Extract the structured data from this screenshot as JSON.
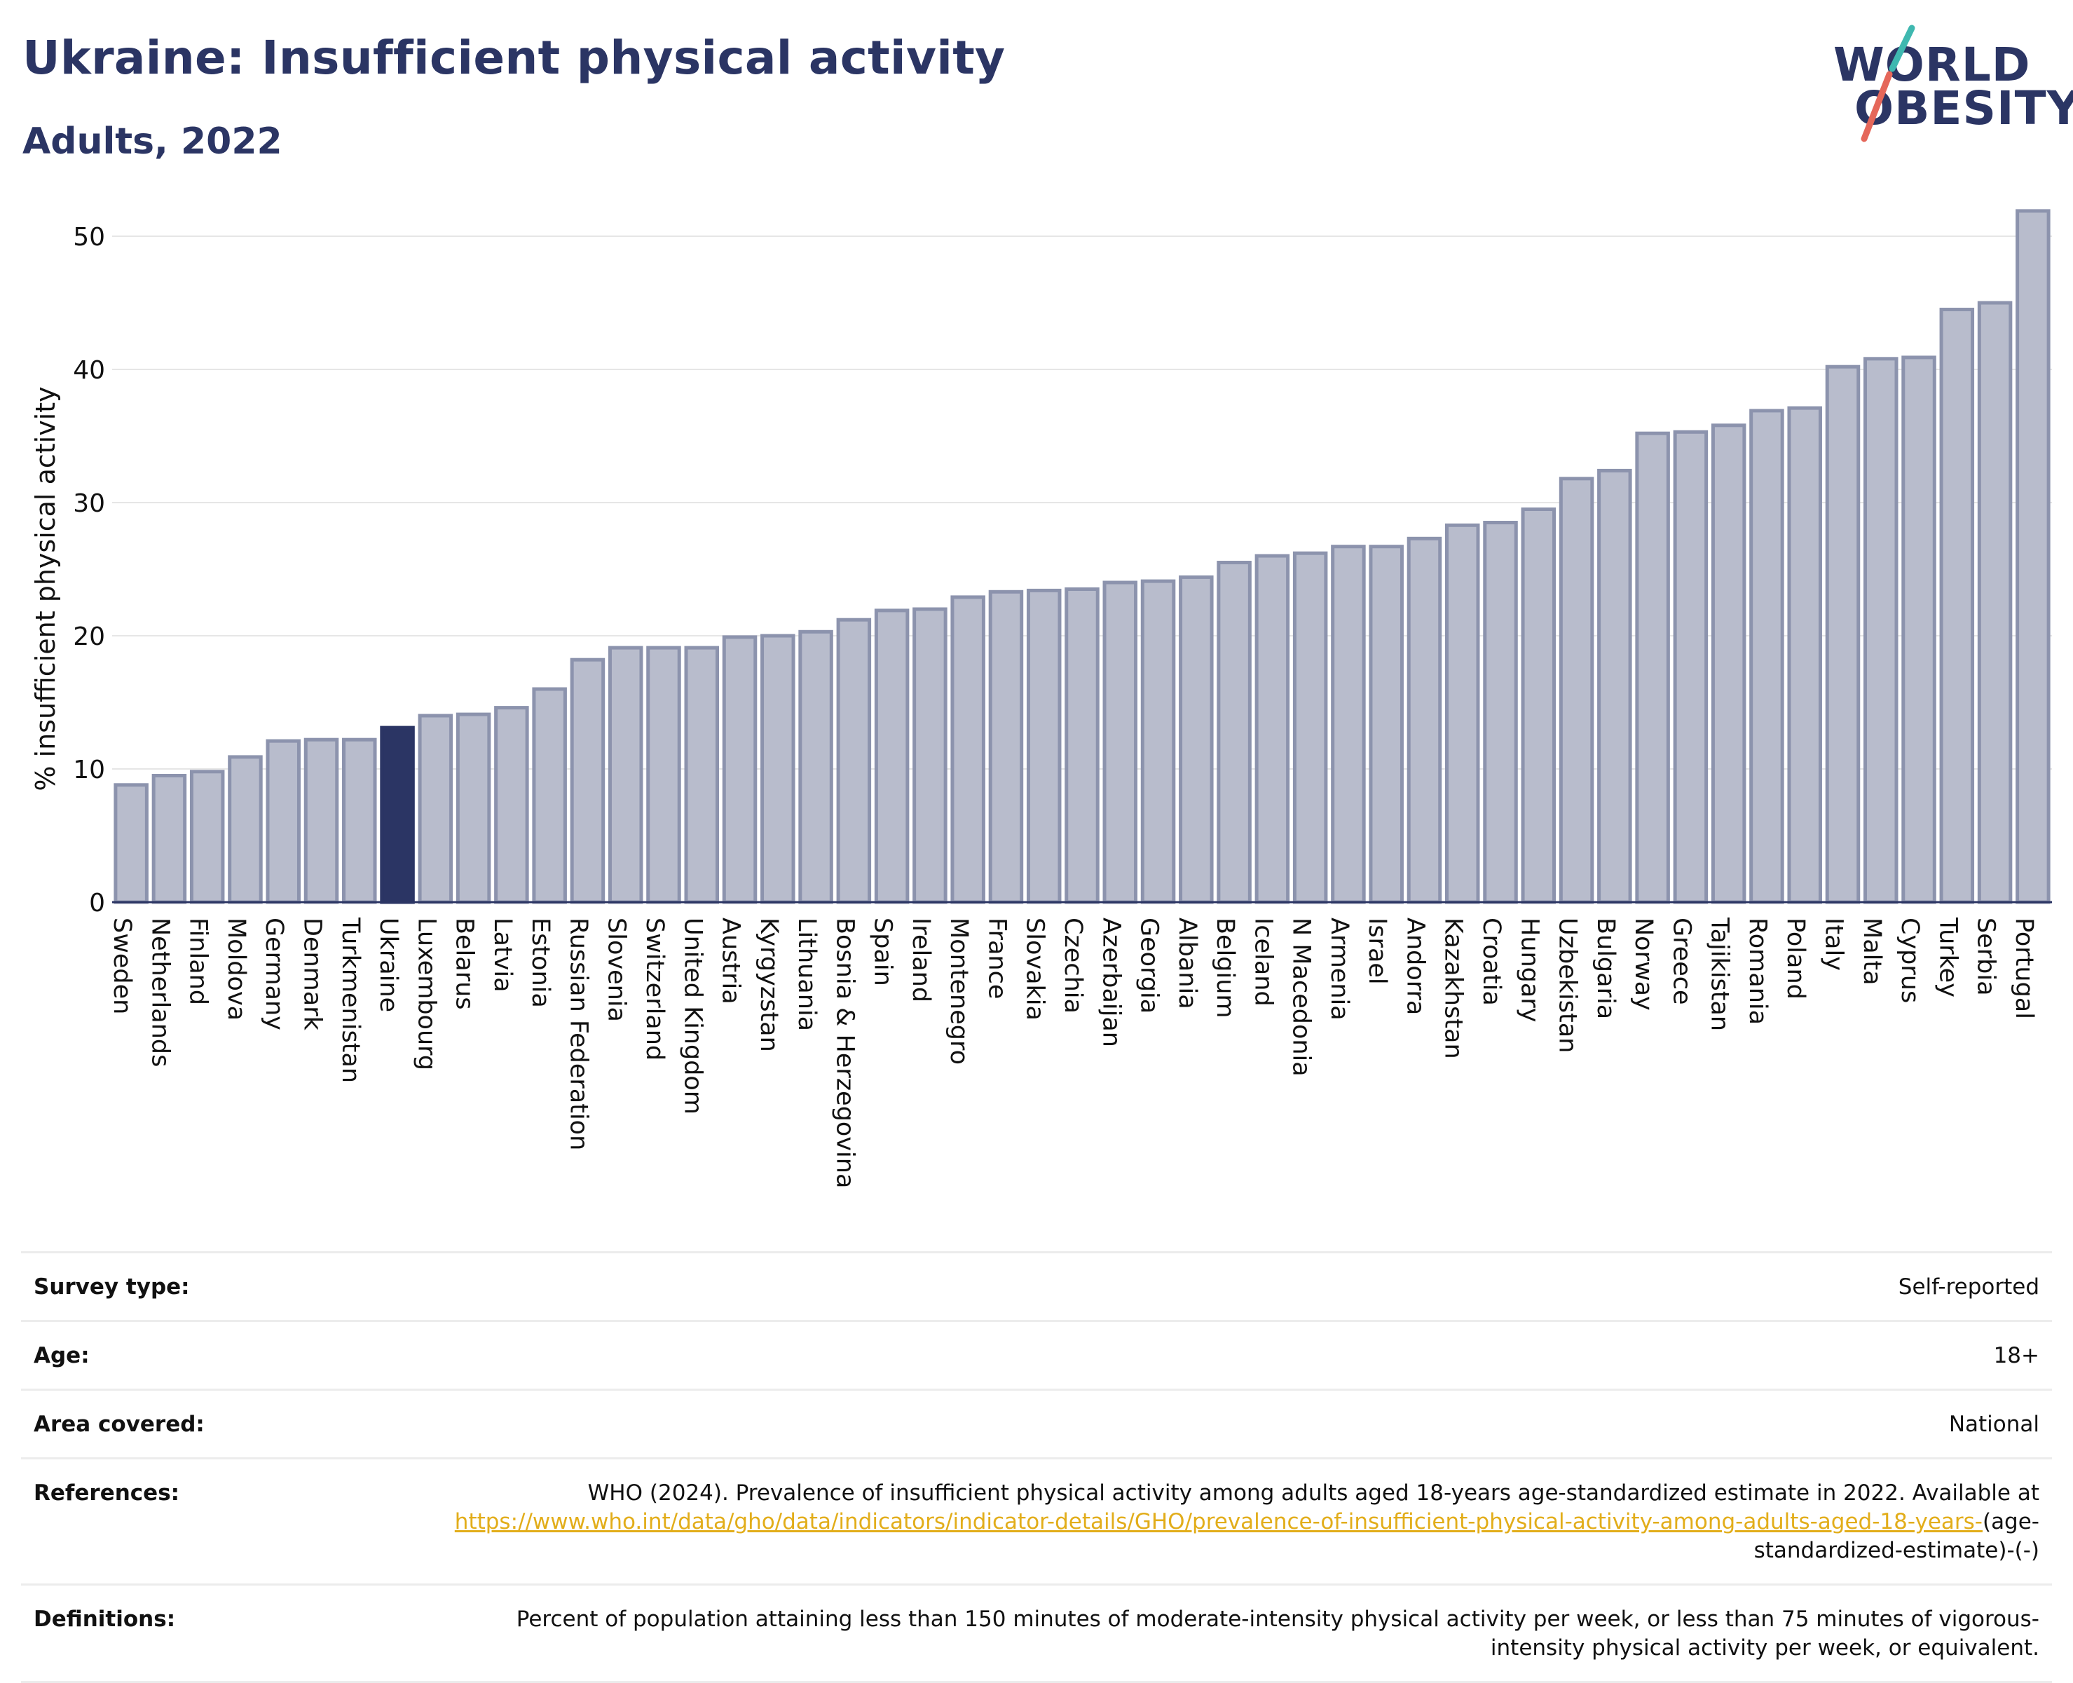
{
  "header": {
    "title": "Ukraine: Insufficient physical activity",
    "subtitle": "Adults, 2022"
  },
  "logo": {
    "line1": "WORLD",
    "line2": "OBESITY",
    "colors": {
      "text": "#2b3564",
      "slash_top": "#3fb8b0",
      "slash_bottom": "#e5675a"
    }
  },
  "chart_data": {
    "type": "bar",
    "title": "Ukraine: Insufficient physical activity",
    "subtitle": "Adults, 2022",
    "xlabel": "",
    "ylabel": "% insufficient physical activity",
    "ylim": [
      0,
      53
    ],
    "yticks": [
      0,
      10,
      20,
      30,
      40,
      50
    ],
    "grid": true,
    "highlight": "Ukraine",
    "colors": {
      "bar": "#b8bccc",
      "bar_edge": "#8c93ad",
      "highlight": "#2b3564",
      "grid": "#e6e6e6"
    },
    "categories": [
      "Sweden",
      "Netherlands",
      "Finland",
      "Moldova",
      "Germany",
      "Denmark",
      "Turkmenistan",
      "Ukraine",
      "Luxembourg",
      "Belarus",
      "Latvia",
      "Estonia",
      "Russian Federation",
      "Slovenia",
      "Switzerland",
      "United Kingdom",
      "Austria",
      "Kyrgyzstan",
      "Lithuania",
      "Bosnia & Herzegovina",
      "Spain",
      "Ireland",
      "Montenegro",
      "France",
      "Slovakia",
      "Czechia",
      "Azerbaijan",
      "Georgia",
      "Albania",
      "Belgium",
      "Iceland",
      "N Macedonia",
      "Armenia",
      "Israel",
      "Andorra",
      "Kazakhstan",
      "Croatia",
      "Hungary",
      "Uzbekistan",
      "Bulgaria",
      "Norway",
      "Greece",
      "Tajikistan",
      "Romania",
      "Poland",
      "Italy",
      "Malta",
      "Cyprus",
      "Turkey",
      "Serbia",
      "Portugal"
    ],
    "values": [
      8.8,
      9.5,
      9.8,
      10.9,
      12.1,
      12.2,
      12.2,
      13.1,
      14.0,
      14.1,
      14.6,
      16.0,
      18.2,
      19.1,
      19.1,
      19.1,
      19.9,
      20.0,
      20.3,
      21.2,
      21.9,
      22.0,
      22.9,
      23.3,
      23.4,
      23.5,
      24.0,
      24.1,
      24.4,
      25.5,
      26.0,
      26.2,
      26.7,
      26.7,
      27.3,
      28.3,
      28.5,
      29.5,
      31.8,
      32.4,
      35.2,
      35.3,
      35.8,
      36.9,
      37.1,
      40.2,
      40.8,
      40.9,
      44.5,
      45.0,
      51.9
    ]
  },
  "info": {
    "survey_type": {
      "label": "Survey type:",
      "value": "Self-reported"
    },
    "age": {
      "label": "Age:",
      "value": "18+"
    },
    "area": {
      "label": "Area covered:",
      "value": "National"
    },
    "references": {
      "label": "References:",
      "text": "WHO (2024). Prevalence of insufficient physical activity among adults aged 18-years age-standardized estimate in 2022. Available at ",
      "link": "https://www.who.int/data/gho/data/indicators/indicator-details/GHO/prevalence-of-insufficient-physical-activity-among-adults-aged-18-years-",
      "suffix": "(age-standardized-estimate)-(-)"
    },
    "definitions": {
      "label": "Definitions:",
      "value": "Percent of population attaining less than 150 minutes of moderate-intensity physical activity per week, or less than 75 minutes of vigorous-intensity physical activity per week, or equivalent."
    }
  }
}
